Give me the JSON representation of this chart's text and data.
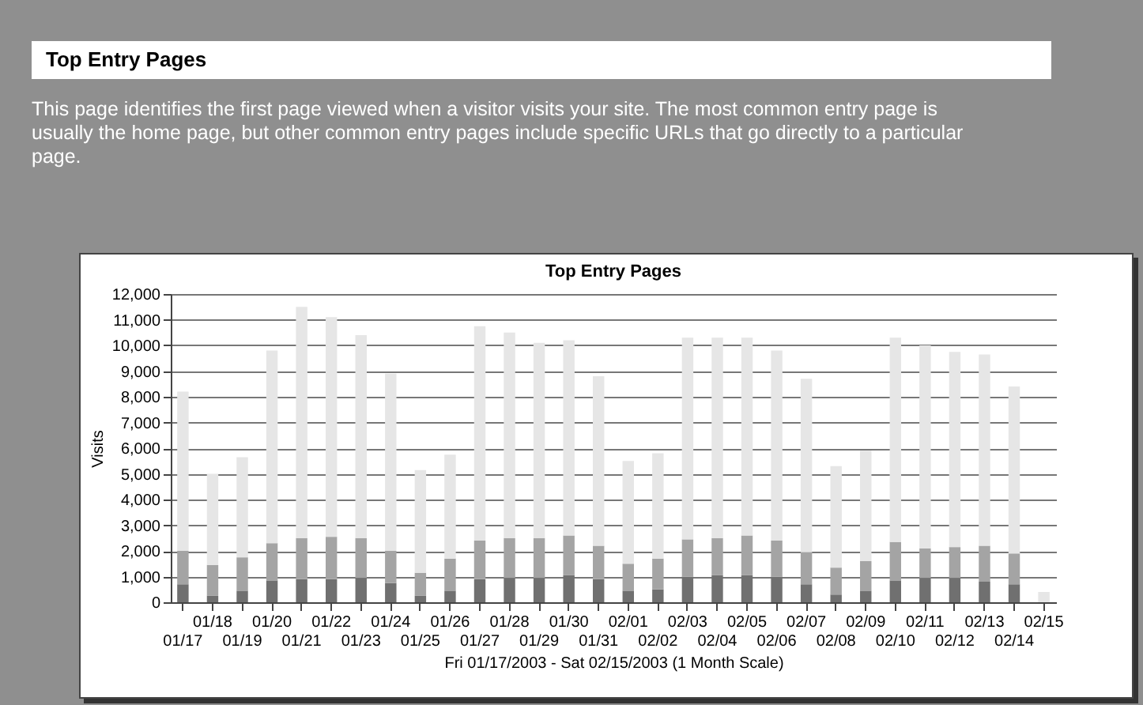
{
  "chart_data": {
    "type": "bar",
    "stacked": true,
    "title": "Top Entry Pages",
    "ylabel": "Visits",
    "xlabel": "Fri 01/17/2003 - Sat 02/15/2003 (1 Month Scale)",
    "annotations": [
      "Top Entry Pages",
      "This page identifies the first page viewed when a visitor visits your site. The most common entry page is usually the home page, but other common entry pages include specific URLs that go directly to a particular page."
    ],
    "categories": [
      "01/17",
      "01/18",
      "01/19",
      "01/20",
      "01/21",
      "01/22",
      "01/23",
      "01/24",
      "01/25",
      "01/26",
      "01/27",
      "01/28",
      "01/29",
      "01/30",
      "01/31",
      "02/01",
      "02/02",
      "02/03",
      "02/04",
      "02/05",
      "02/06",
      "02/07",
      "02/08",
      "02/09",
      "02/10",
      "02/11",
      "02/12",
      "02/13",
      "02/14",
      "02/15"
    ],
    "series": [
      {
        "color": "#707070",
        "values": [
          700,
          250,
          450,
          850,
          900,
          900,
          950,
          750,
          250,
          450,
          900,
          950,
          950,
          1050,
          900,
          450,
          500,
          1000,
          1050,
          1050,
          1000,
          700,
          300,
          450,
          850,
          950,
          950,
          800,
          700,
          0
        ]
      },
      {
        "color": "#a4a4a4",
        "values": [
          1300,
          1200,
          1300,
          1450,
          1600,
          1650,
          1550,
          1250,
          900,
          1250,
          1500,
          1550,
          1550,
          1550,
          1300,
          1050,
          1200,
          1450,
          1450,
          1550,
          1400,
          1250,
          1050,
          1150,
          1500,
          1150,
          1200,
          1400,
          1200,
          0
        ]
      },
      {
        "color": "#e6e6e6",
        "values": [
          6200,
          3550,
          3900,
          7500,
          9000,
          8550,
          7900,
          6900,
          4000,
          4050,
          8350,
          8000,
          7600,
          7600,
          6600,
          4000,
          4100,
          7850,
          7800,
          7700,
          7400,
          6750,
          3950,
          4300,
          7950,
          7900,
          7600,
          7450,
          6500,
          400
        ]
      }
    ],
    "ylim": [
      0,
      12000
    ],
    "yticks": [
      0,
      {
        "value": 1000,
        "label": "1,000"
      },
      {
        "value": 2000,
        "label": "2,000"
      },
      {
        "value": 3000,
        "label": "3,000"
      },
      {
        "value": 4000,
        "label": "4,000"
      },
      {
        "value": 5000,
        "label": "5,000"
      },
      {
        "value": 6000,
        "label": "6,000"
      },
      {
        "value": 7000,
        "label": "7,000"
      },
      {
        "value": 8000,
        "label": "8,000"
      },
      {
        "value": 9000,
        "label": "9,000"
      },
      {
        "value": 10000,
        "label": "10,000"
      },
      {
        "value": 11000,
        "label": "11,000"
      },
      {
        "value": 12000,
        "label": "12,000"
      }
    ],
    "grid": "y"
  }
}
